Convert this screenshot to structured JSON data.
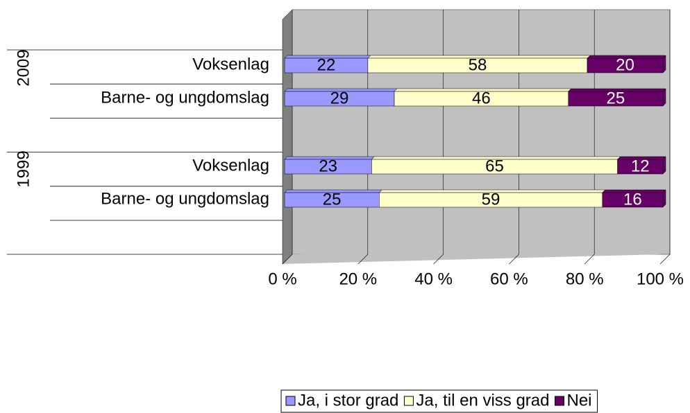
{
  "chart_data": {
    "type": "stacked_bar_horizontal_3d",
    "groups": [
      {
        "label": "2009",
        "categories": [
          "Voksenlag",
          "Barne- og ungdomslag"
        ]
      },
      {
        "label": "1999",
        "categories": [
          "Voksenlag",
          "Barne- og ungdomslag"
        ]
      }
    ],
    "series": [
      {
        "name": "Ja, i stor grad",
        "color": "#9999ff",
        "label_color": "#000000",
        "values": [
          22,
          29,
          23,
          25
        ]
      },
      {
        "name": "Ja, til en viss grad",
        "color": "#ffffcc",
        "label_color": "#000000",
        "values": [
          58,
          46,
          65,
          59
        ]
      },
      {
        "name": "Nei",
        "color": "#660066",
        "label_color": "#ffffff",
        "values": [
          20,
          25,
          12,
          16
        ]
      }
    ],
    "xlim": [
      0,
      100
    ],
    "xticks": [
      {
        "value": 0,
        "label": "0 %"
      },
      {
        "value": 20,
        "label": "20 %"
      },
      {
        "value": 40,
        "label": "40 %"
      },
      {
        "value": 60,
        "label": "60 %"
      },
      {
        "value": 80,
        "label": "80 %"
      },
      {
        "value": 100,
        "label": "100 %"
      }
    ],
    "grid": true,
    "legend": "bottom"
  }
}
